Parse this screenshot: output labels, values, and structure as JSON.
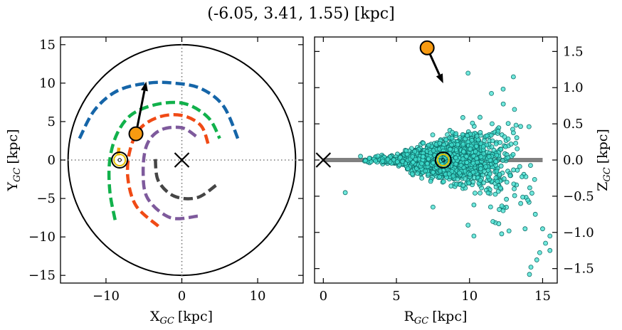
{
  "title": "(-6.05, 3.41, 1.55) [kpc]",
  "chart_data": [
    {
      "type": "scatter",
      "subtype": "galactic-plane map (x-y)",
      "xlabel_main": "X",
      "xlabel_sub": "GC",
      "xlabel_unit": "[kpc]",
      "ylabel_main": "Y",
      "ylabel_sub": "GC",
      "ylabel_unit": "[kpc]",
      "xlim": [
        -16,
        16
      ],
      "ylim": [
        -16,
        16
      ],
      "xticks": [
        -10,
        0,
        10
      ],
      "xtick_labels": [
        "−10",
        "0",
        "10"
      ],
      "yticks": [
        -15,
        -10,
        -5,
        0,
        5,
        10,
        15
      ],
      "ytick_labels": [
        "−15",
        "−10",
        "−5",
        "0",
        "5",
        "10",
        "15"
      ],
      "grid": false,
      "galaxy_radius": 15,
      "galactic_center": [
        0,
        0
      ],
      "sun_position": [
        -8.2,
        0.0
      ],
      "object_position": [
        -6.05,
        3.41
      ],
      "object_arrow_tip": [
        -4.7,
        10.2
      ],
      "arms": [
        {
          "color": "#1565a8",
          "points": [
            [
              -13.5,
              2.8
            ],
            [
              -11.5,
              6.5
            ],
            [
              -8.5,
              9.0
            ],
            [
              -4.5,
              10.0
            ],
            [
              -1.0,
              10.0
            ],
            [
              2.5,
              9.3
            ],
            [
              5.5,
              7.0
            ],
            [
              7.5,
              2.5
            ]
          ]
        },
        {
          "color": "#11b14b",
          "points": [
            [
              -8.8,
              -7.8
            ],
            [
              -9.5,
              -4.0
            ],
            [
              -9.5,
              0.0
            ],
            [
              -8.5,
              3.5
            ],
            [
              -6.5,
              6.0
            ],
            [
              -3.0,
              7.3
            ],
            [
              0.5,
              7.3
            ],
            [
              3.5,
              5.5
            ],
            [
              5.0,
              2.8
            ]
          ]
        },
        {
          "color": "#f04a15",
          "points": [
            [
              -3.1,
              -8.6
            ],
            [
              -6.0,
              -6.0
            ],
            [
              -7.1,
              -2.5
            ],
            [
              -6.9,
              1.0
            ],
            [
              -5.6,
              4.0
            ],
            [
              -3.0,
              5.6
            ],
            [
              0.0,
              5.8
            ],
            [
              2.5,
              4.5
            ],
            [
              3.5,
              2.0
            ]
          ]
        },
        {
          "color": "#7e5a9c",
          "points": [
            [
              2.1,
              -7.3
            ],
            [
              -1.5,
              -7.5
            ],
            [
              -4.5,
              -5.0
            ],
            [
              -5.1,
              -1.5
            ],
            [
              -4.6,
              2.0
            ],
            [
              -2.8,
              3.9
            ],
            [
              0.0,
              4.2
            ],
            [
              2.0,
              3.0
            ]
          ]
        },
        {
          "color": "#454545",
          "points": [
            [
              4.5,
              -3.3
            ],
            [
              2.0,
              -4.9
            ],
            [
              -1.0,
              -4.7
            ],
            [
              -3.1,
              -2.7
            ],
            [
              -3.5,
              0.2
            ]
          ]
        },
        {
          "color": "#f5a40f",
          "points": [
            [
              -8.4,
              0.6
            ],
            [
              -8.3,
              1.6
            ]
          ]
        }
      ]
    },
    {
      "type": "scatter",
      "subtype": "R-Z plane",
      "xlabel_main": "R",
      "xlabel_sub": "GC",
      "xlabel_unit": "[kpc]",
      "ylabel_main": "Z",
      "ylabel_sub": "GC",
      "ylabel_unit": "[kpc]",
      "xlim": [
        -0.6,
        16.0
      ],
      "ylim": [
        -1.7,
        1.7
      ],
      "xticks": [
        0,
        5,
        10,
        15
      ],
      "xtick_labels": [
        "0",
        "5",
        "10",
        "15"
      ],
      "yticks": [
        -1.5,
        -1.0,
        -0.5,
        0.0,
        0.5,
        1.0,
        1.5
      ],
      "ytick_labels": [
        "−1.5",
        "−1.0",
        "−0.5",
        "0.0",
        "0.5",
        "1.0",
        "1.5"
      ],
      "grid": false,
      "galactic_center": [
        0,
        0
      ],
      "sun_position": [
        8.2,
        0.0
      ],
      "object_position": [
        7.1,
        1.55
      ],
      "object_arrow_tip": [
        8.2,
        1.06
      ],
      "disk_line": {
        "x": [
          0,
          15
        ],
        "y": 0,
        "color": "#808080"
      },
      "star_cloud": {
        "color": "#40e0d0",
        "edge": "#0f6f6a",
        "approx_count": 1800,
        "r_range": [
          2.5,
          15.5
        ],
        "spread": "|z| grows with R, flares beyond R ≈ 11"
      },
      "outliers": [
        [
          1.5,
          -0.45
        ],
        [
          9.9,
          1.2
        ],
        [
          13.0,
          1.15
        ],
        [
          12.3,
          0.98
        ],
        [
          11.5,
          0.92
        ],
        [
          12.3,
          -0.7
        ],
        [
          13.5,
          -0.6
        ],
        [
          14.5,
          -0.75
        ],
        [
          15.0,
          -0.95
        ],
        [
          15.5,
          -1.05
        ],
        [
          14.8,
          -1.28
        ],
        [
          15.2,
          -1.15
        ],
        [
          14.6,
          -1.38
        ],
        [
          14.2,
          -1.48
        ],
        [
          15.5,
          -1.25
        ],
        [
          12.0,
          -0.88
        ],
        [
          12.7,
          -0.98
        ],
        [
          11.6,
          -0.85
        ],
        [
          9.9,
          -0.9
        ],
        [
          7.5,
          -0.65
        ],
        [
          10.3,
          -0.62
        ],
        [
          14.1,
          -1.58
        ],
        [
          12.2,
          -1.02
        ],
        [
          10.3,
          -1.05
        ],
        [
          13.8,
          -0.95
        ]
      ]
    }
  ]
}
